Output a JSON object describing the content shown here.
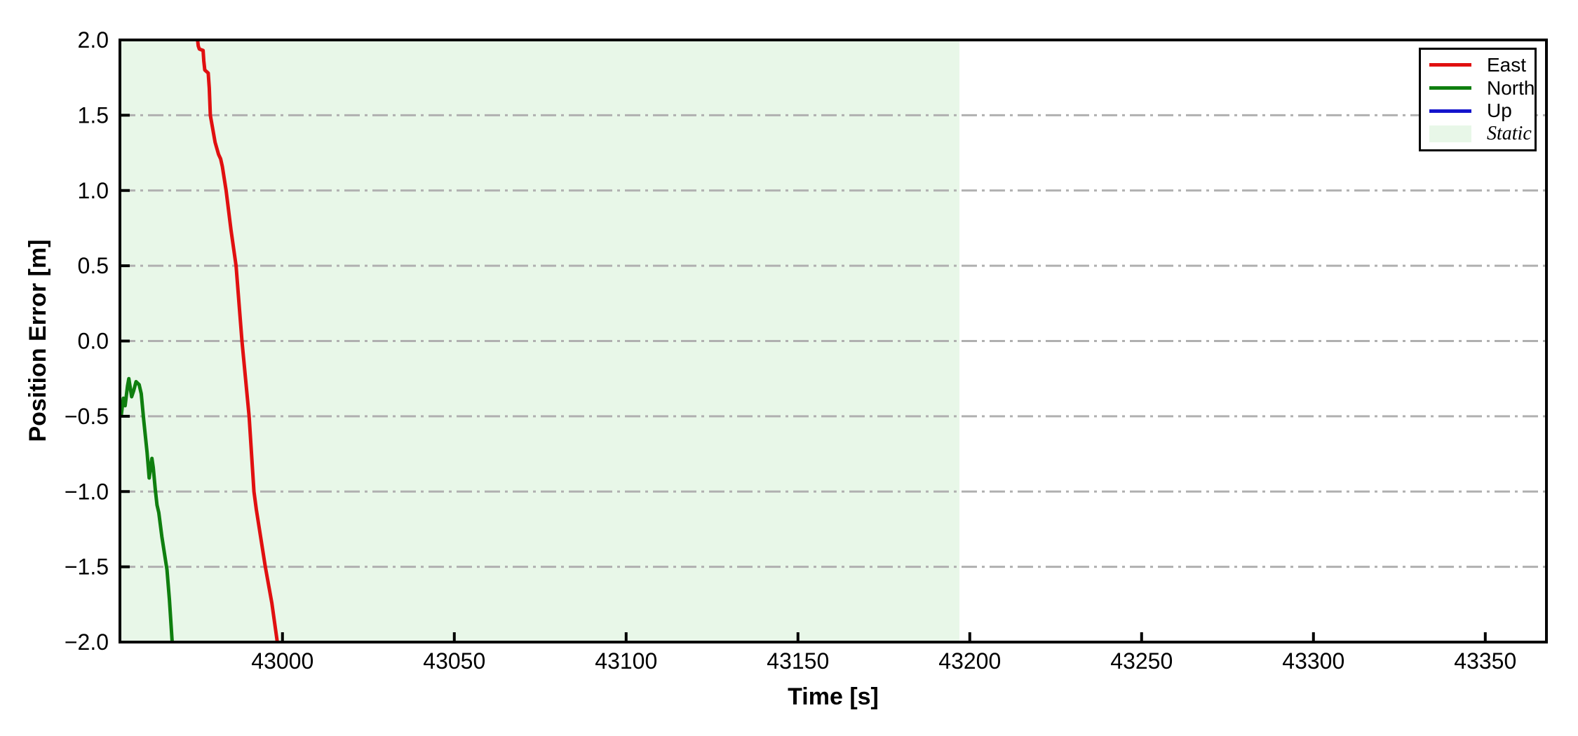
{
  "figure": {
    "background": "#ffffff"
  },
  "chart_data": {
    "type": "line",
    "title": "",
    "xlabel": "Time [s]",
    "ylabel": "Position Error [m]",
    "xlim": [
      42952.7,
      43367.8
    ],
    "ylim": [
      -2.0,
      2.0
    ],
    "xticks": [
      43000,
      43050,
      43100,
      43150,
      43200,
      43250,
      43300,
      43350
    ],
    "xtick_labels": [
      "43000",
      "43050",
      "43100",
      "43150",
      "43200",
      "43250",
      "43300",
      "43350"
    ],
    "yticks": [
      2.0,
      1.5,
      1.0,
      0.5,
      0.0,
      -0.5,
      -1.0,
      -1.5,
      -2.0
    ],
    "ytick_labels": [
      "2.0",
      "1.5",
      "1.0",
      "0.5",
      "0.0",
      "−0.5",
      "−1.0",
      "−1.5",
      "−2.0"
    ],
    "grid": {
      "axis": "y",
      "pattern": "dash-dot",
      "dash": [
        22,
        7,
        4,
        7
      ],
      "color": "#b0b0b0",
      "width": 3,
      "interior_only": true
    },
    "regions": [
      {
        "label": "Static",
        "x_start": 42952.7,
        "x_end": 43197.0,
        "color": "#e8f7e8"
      }
    ],
    "series": [
      {
        "name": "East",
        "color": "#e01010",
        "width": 5,
        "points": [
          [
            42975.3,
            2.0
          ],
          [
            42975.5,
            1.96
          ],
          [
            42975.8,
            1.94
          ],
          [
            42976.9,
            1.93
          ],
          [
            42977.1,
            1.86
          ],
          [
            42977.4,
            1.8
          ],
          [
            42978.4,
            1.78
          ],
          [
            42978.7,
            1.68
          ],
          [
            42979.0,
            1.5
          ],
          [
            42980.4,
            1.32
          ],
          [
            42981.4,
            1.24
          ],
          [
            42982.0,
            1.21
          ],
          [
            42982.5,
            1.16
          ],
          [
            42983.6,
            1.0
          ],
          [
            42985.0,
            0.74
          ],
          [
            42986.5,
            0.5
          ],
          [
            42988.2,
            0.0
          ],
          [
            42990.3,
            -0.5
          ],
          [
            42991.7,
            -1.0
          ],
          [
            42992.4,
            -1.12
          ],
          [
            42995.0,
            -1.5
          ],
          [
            42996.9,
            -1.74
          ],
          [
            42998.5,
            -2.0
          ]
        ]
      },
      {
        "name": "North",
        "color": "#0f7f0f",
        "width": 5,
        "points": [
          [
            42952.7,
            -0.42
          ],
          [
            42953.1,
            -0.49
          ],
          [
            42953.7,
            -0.38
          ],
          [
            42954.2,
            -0.43
          ],
          [
            42954.9,
            -0.3
          ],
          [
            42955.3,
            -0.25
          ],
          [
            42956.1,
            -0.37
          ],
          [
            42956.7,
            -0.33
          ],
          [
            42957.4,
            -0.27
          ],
          [
            42958.3,
            -0.29
          ],
          [
            42958.9,
            -0.35
          ],
          [
            42959.6,
            -0.52
          ],
          [
            42960.6,
            -0.74
          ],
          [
            42961.2,
            -0.91
          ],
          [
            42962.0,
            -0.78
          ],
          [
            42962.4,
            -0.84
          ],
          [
            42963.0,
            -0.99
          ],
          [
            42963.5,
            -1.09
          ],
          [
            42964.0,
            -1.14
          ],
          [
            42964.9,
            -1.3
          ],
          [
            42966.4,
            -1.52
          ],
          [
            42967.1,
            -1.72
          ],
          [
            42967.9,
            -2.0
          ]
        ]
      },
      {
        "name": "Up",
        "color": "#1414cc",
        "width": 5,
        "points": [],
        "visible_in_view": false
      }
    ],
    "legend": {
      "position": "top-right",
      "items": [
        {
          "label": "East",
          "swatch": "line",
          "color": "#e01010",
          "italic": false
        },
        {
          "label": "North",
          "swatch": "line",
          "color": "#0f7f0f",
          "italic": false
        },
        {
          "label": "Up",
          "swatch": "line",
          "color": "#1414cc",
          "italic": false
        },
        {
          "label": "Static",
          "swatch": "patch",
          "color": "#e8f7e8",
          "italic": true
        }
      ]
    }
  }
}
